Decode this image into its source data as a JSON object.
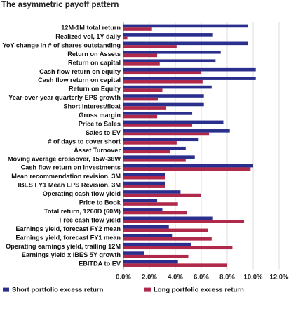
{
  "chart_data": {
    "type": "bar",
    "orientation": "horizontal",
    "title": "The asymmetric payoff pattern",
    "categories": [
      "12M-1M total return",
      "Realized vol, 1Y daily",
      "YoY change in # of shares outstanding",
      "Return on Assets",
      "Return on capital",
      "Cash flow return on equity",
      "Cash flow return on capital",
      "Return on Equity",
      "Year-over-year quarterly EPS growth",
      "Short interest/float",
      "Gross margin",
      "Price to Sales",
      "Sales to EV",
      "# of days to cover short",
      "Asset Turnover",
      "Moving average crossover, 15W-36W",
      "Cash flow return on investments",
      "Mean recommendation revision, 3M",
      "IBES FY1 Mean EPS Revision, 3M",
      "Operating cash flow yield",
      "Price to Book",
      "Total return, 1260D (60M)",
      "Free cash flow yield",
      "Earnings yield, forecast FY2 mean",
      "Earnings yield, forecast FY1 mean",
      "Operating earnings yield, trailing 12M",
      "Earnings yield x IBES 5Y growth",
      "EBITDA to EV"
    ],
    "series": [
      {
        "name": "Short portfolio excess return",
        "color": "#2a2e8c",
        "values": [
          9.6,
          6.9,
          9.6,
          7.5,
          7.1,
          10.2,
          10.2,
          6.8,
          6.2,
          6.2,
          5.3,
          7.7,
          8.2,
          5.8,
          4.8,
          5.5,
          10.0,
          3.2,
          3.2,
          4.4,
          2.6,
          3.0,
          6.9,
          3.5,
          3.8,
          5.2,
          1.6,
          4.2
        ]
      },
      {
        "name": "Long portfolio excess return",
        "color": "#b0284a",
        "values": [
          2.2,
          0.3,
          4.1,
          2.6,
          2.8,
          6.0,
          6.1,
          3.0,
          2.7,
          3.3,
          2.6,
          5.3,
          6.6,
          4.1,
          3.6,
          4.8,
          9.8,
          3.2,
          3.2,
          6.0,
          4.2,
          4.9,
          9.3,
          6.5,
          6.8,
          8.4,
          5.0,
          8.0
        ]
      }
    ],
    "xlim": [
      0,
      12
    ],
    "xticks": [
      "0.0%",
      "2.0%",
      "4.0%",
      "6.0%",
      "8.0%",
      "10.0%",
      "12.0%"
    ],
    "xlabel": "",
    "ylabel": "",
    "grid": "vertical",
    "legend_position": "bottom"
  }
}
